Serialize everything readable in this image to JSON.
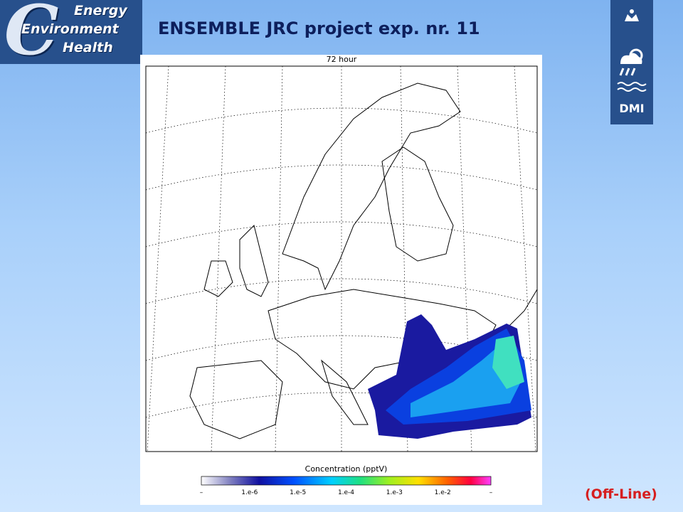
{
  "logo": {
    "letter": "C",
    "line1": "Energy",
    "line2": "Environment",
    "line3": "Health"
  },
  "title": "ENSEMBLE JRC project exp. nr. 11",
  "map": {
    "time_label": "72 hour",
    "colorbar_title": "Concentration (pptV)",
    "colorbar_labels": [
      "–",
      "1.e-6",
      "1.e-5",
      "1.e-4",
      "1.e-3",
      "1.e-2",
      "–"
    ]
  },
  "dmi_logo": "DMI",
  "status": "(Off-Line)"
}
